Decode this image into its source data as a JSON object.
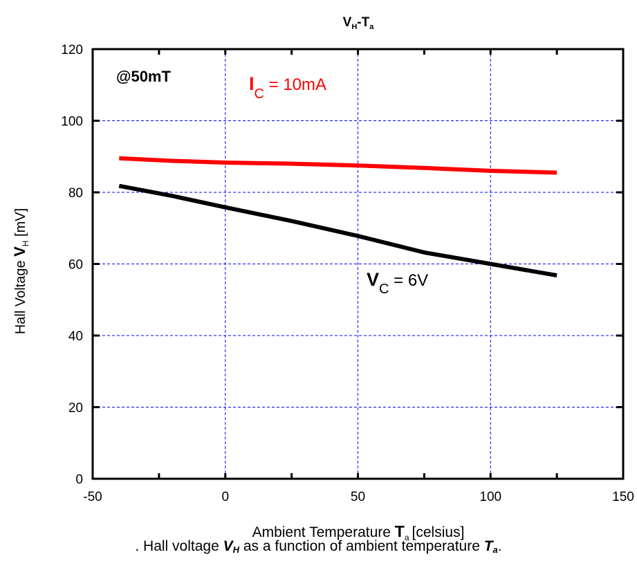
{
  "chart_data": {
    "type": "line",
    "title": {
      "main": "V",
      "main_sub": "H",
      "sep": "-T",
      "sep_sub": "a"
    },
    "xlabel": {
      "prefix": "Ambient Temperature ",
      "symbol": "T",
      "symbol_sub": "a",
      "unit": "[celsius]"
    },
    "ylabel": {
      "prefix": "Hall Voltage ",
      "symbol": "V",
      "symbol_sub": "H",
      "unit": " [mV]"
    },
    "xlim": [
      -50,
      150
    ],
    "ylim": [
      0,
      120
    ],
    "xticks": [
      -50,
      0,
      50,
      100,
      150
    ],
    "yticks": [
      0,
      20,
      40,
      60,
      80,
      100,
      120
    ],
    "grid": true,
    "annotations": {
      "field": "@50mT",
      "ic": {
        "symbol": "I",
        "sub": "C",
        "value": " = 10mA"
      },
      "vc": {
        "symbol": "V",
        "sub": "C",
        "value": " = 6V"
      }
    },
    "series": [
      {
        "label": "Ic = 10mA",
        "color": "#ff0000",
        "x": [
          -40,
          -20,
          0,
          25,
          50,
          75,
          100,
          125
        ],
        "y": [
          89.5,
          88.8,
          88.3,
          88.0,
          87.5,
          86.8,
          86.0,
          85.5
        ]
      },
      {
        "label": "Vc = 6V",
        "color": "#000000",
        "x": [
          -40,
          -20,
          0,
          25,
          50,
          75,
          100,
          125
        ],
        "y": [
          81.8,
          79.0,
          75.8,
          72.0,
          67.8,
          63.2,
          60.0,
          56.8
        ]
      }
    ],
    "grid_color": "#0000ff"
  },
  "caption": {
    "lead": ". Hall voltage ",
    "v": "V",
    "v_sub": "H",
    "mid": " as a function of ambient temperature ",
    "t": "T",
    "t_sub": "a",
    "end": "."
  }
}
